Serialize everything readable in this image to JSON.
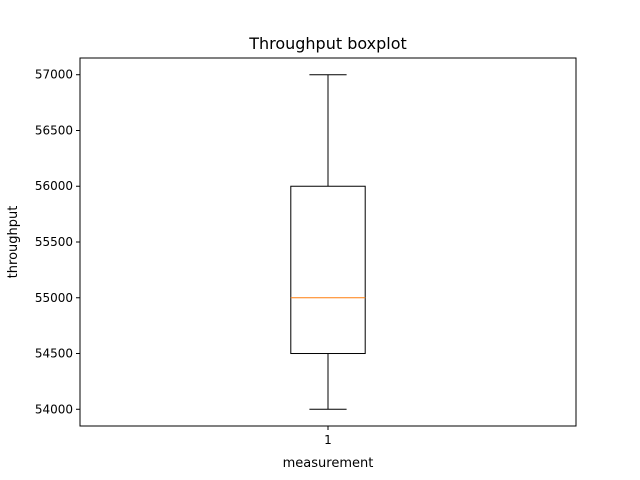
{
  "chart_data": {
    "type": "boxplot",
    "title": "Throughput boxplot",
    "xlabel": "measurement",
    "ylabel": "throughput",
    "categories": [
      "1"
    ],
    "boxes": [
      {
        "category": "1",
        "whisker_low": 54000,
        "q1": 54500,
        "median": 55000,
        "q3": 56000,
        "whisker_high": 57000
      }
    ],
    "y_ticks": [
      54000,
      54500,
      55000,
      55500,
      56000,
      56500,
      57000
    ],
    "ylim": [
      53850,
      57150
    ],
    "grid": false,
    "colors": {
      "box": "#000000",
      "median": "#ff7f0e",
      "axes": "#000000"
    }
  }
}
